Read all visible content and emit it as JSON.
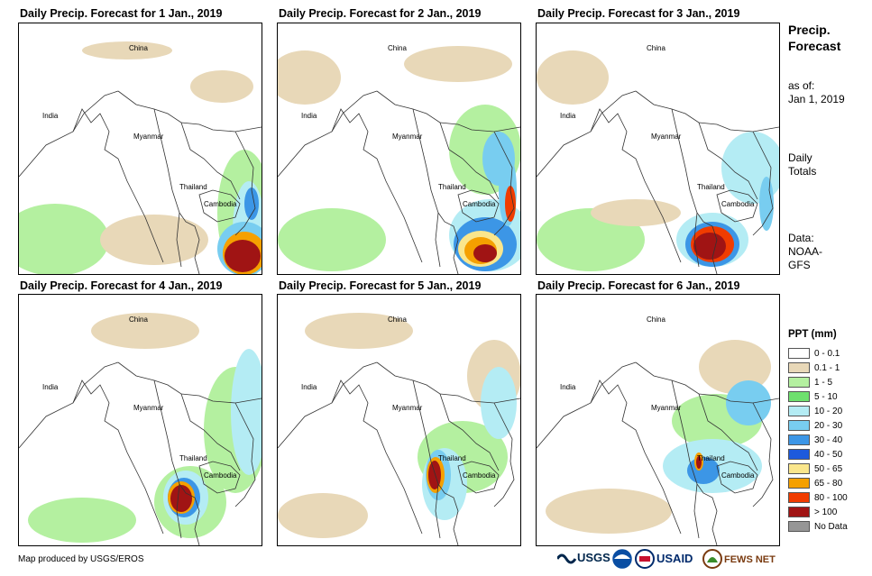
{
  "panels": [
    {
      "title": "Daily Precip. Forecast for 1 Jan., 2019"
    },
    {
      "title": "Daily Precip. Forecast for 2 Jan., 2019"
    },
    {
      "title": "Daily Precip. Forecast for 3 Jan., 2019"
    },
    {
      "title": "Daily Precip. Forecast for 4 Jan., 2019"
    },
    {
      "title": "Daily Precip. Forecast for 5 Jan., 2019"
    },
    {
      "title": "Daily Precip. Forecast for 6 Jan., 2019"
    }
  ],
  "map_labels": {
    "china": "China",
    "india": "India",
    "myanmar": "Myanmar",
    "thailand": "Thailand",
    "cambodia": "Cambodia"
  },
  "side": {
    "title_line1": "Precip.",
    "title_line2": "Forecast",
    "asof_line1": "as of:",
    "asof_line2": "Jan 1, 2019",
    "totals_line1": "Daily",
    "totals_line2": "Totals",
    "data_line1": "Data:",
    "data_line2": "NOAA-",
    "data_line3": "GFS"
  },
  "legend": {
    "title": "PPT (mm)",
    "items": [
      {
        "label": "0 - 0.1",
        "color": "#ffffff"
      },
      {
        "label": "0.1 - 1",
        "color": "#e8d8b8"
      },
      {
        "label": "1 - 5",
        "color": "#b4f0a0"
      },
      {
        "label": "5 - 10",
        "color": "#6ee06e"
      },
      {
        "label": "10 - 20",
        "color": "#b4ecf4"
      },
      {
        "label": "20 - 30",
        "color": "#78cdf0"
      },
      {
        "label": "30 - 40",
        "color": "#3c96e6"
      },
      {
        "label": "40 - 50",
        "color": "#1e5adc"
      },
      {
        "label": "50 - 65",
        "color": "#fae68c"
      },
      {
        "label": "65 - 80",
        "color": "#f5a000"
      },
      {
        "label": "80 - 100",
        "color": "#f03c00"
      },
      {
        "label": "> 100",
        "color": "#a01414"
      },
      {
        "label": "No Data",
        "color": "#969696"
      }
    ]
  },
  "footer": {
    "credit": "Map produced by USGS/EROS"
  },
  "logos": {
    "usgs": "USGS",
    "usaid": "USAID",
    "fewsnet": "FEWS NET"
  }
}
